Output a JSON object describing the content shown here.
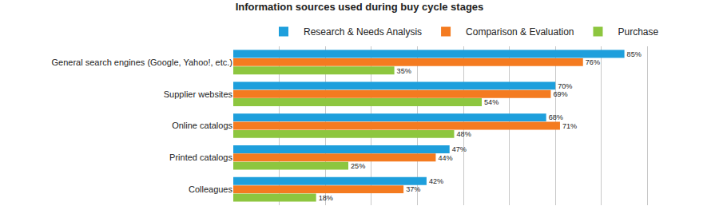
{
  "chart_data": {
    "type": "bar",
    "title": "Information sources used during buy cycle stages",
    "orientation": "horizontal",
    "stacked": false,
    "data_labels": true,
    "tick_labels": "y",
    "grid": true,
    "legend": "top",
    "categories": [
      "General search engines (Google, Yahoo!, etc.)",
      "Supplier websites",
      "Online catalogs",
      "Printed catalogs",
      "Colleagues"
    ],
    "series": [
      {
        "name": "Research & Needs Analysis",
        "color": "#1e9fdc",
        "values": [
          85,
          70,
          68,
          47,
          42
        ],
        "value_labels": [
          "85%",
          "70%",
          "68%",
          "47%",
          "42%"
        ]
      },
      {
        "name": "Comparison & Evaluation",
        "color": "#f47b20",
        "values": [
          76,
          69,
          71,
          44,
          37
        ],
        "value_labels": [
          "76%",
          "69%",
          "71%",
          "44%",
          "37%"
        ]
      },
      {
        "name": "Purchase",
        "color": "#8dc63f",
        "values": [
          35,
          54,
          48,
          25,
          18
        ],
        "value_labels": [
          "35%",
          "54%",
          "48%",
          "25%",
          "18%"
        ]
      }
    ],
    "xlim": [
      0,
      100
    ],
    "xticks": [
      0,
      10,
      20,
      30,
      40,
      50,
      60,
      70,
      80,
      90,
      100
    ]
  }
}
